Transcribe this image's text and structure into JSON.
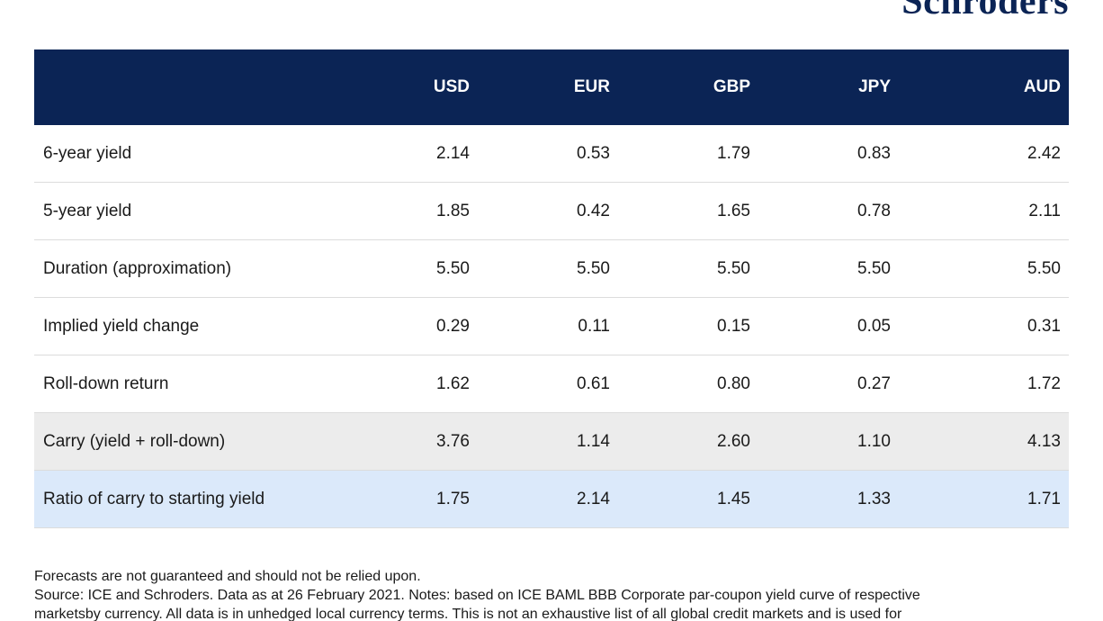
{
  "header": {
    "logo_text": "Schroders"
  },
  "table": {
    "columns": [
      "USD",
      "EUR",
      "GBP",
      "JPY",
      "AUD"
    ],
    "rows": [
      {
        "label": "6-year yield",
        "values": [
          "2.14",
          "0.53",
          "1.79",
          "0.83",
          "2.42"
        ]
      },
      {
        "label": "5-year yield",
        "values": [
          "1.85",
          "0.42",
          "1.65",
          "0.78",
          "2.11"
        ]
      },
      {
        "label": "Duration (approximation)",
        "values": [
          "5.50",
          "5.50",
          "5.50",
          "5.50",
          "5.50"
        ]
      },
      {
        "label": "Implied yield change",
        "values": [
          "0.29",
          "0.11",
          "0.15",
          "0.05",
          "0.31"
        ]
      },
      {
        "label": "Roll-down return",
        "values": [
          "1.62",
          "0.61",
          "0.80",
          "0.27",
          "1.72"
        ]
      },
      {
        "label": "Carry (yield + roll-down)",
        "values": [
          "3.76",
          "1.14",
          "2.60",
          "1.10",
          "4.13"
        ]
      },
      {
        "label": "Ratio of carry to starting yield",
        "values": [
          "1.75",
          "2.14",
          "1.45",
          "1.33",
          "1.71"
        ]
      }
    ]
  },
  "notes": {
    "line1": "Forecasts are not guaranteed and should not be relied upon.",
    "line2": "Source: ICE and Schroders. Data as at 26 February 2021. Notes: based on ICE BAML BBB Corporate par-coupon yield curve of respective",
    "line3": "marketsby currency. All data is in unhedged local currency terms. This is not an exhaustive list of all global credit markets and is used for"
  },
  "colors": {
    "header_bg": "#0b2455",
    "carry_row_bg": "#ececec",
    "ratio_row_bg": "#dbe9fa"
  }
}
